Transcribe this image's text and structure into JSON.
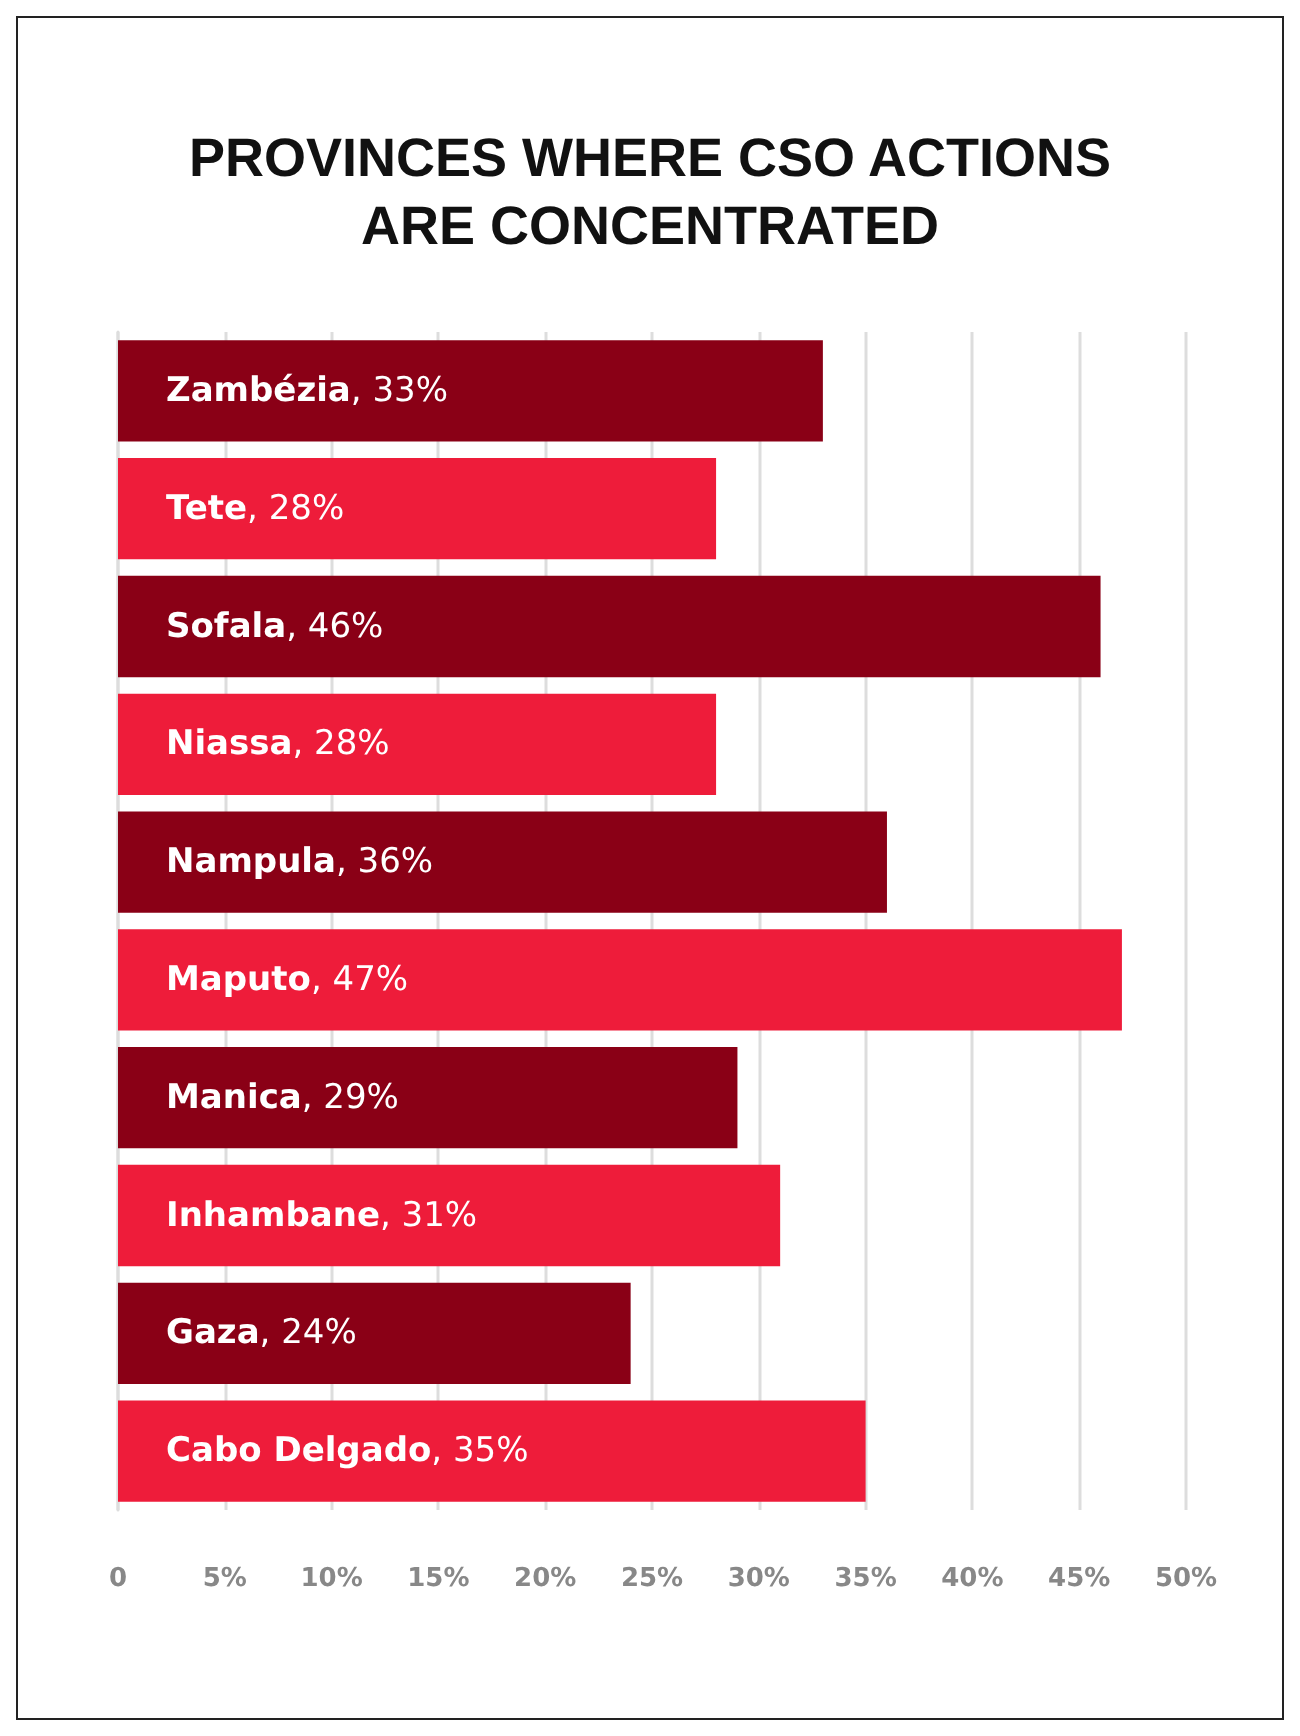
{
  "chart_data": {
    "type": "bar",
    "orientation": "horizontal",
    "title": "PROVINCES WHERE CSO ACTIONS\nARE CONCENTRATED",
    "categories": [
      "Zambézia",
      "Tete",
      "Sofala",
      "Niassa",
      "Nampula",
      "Maputo",
      "Manica",
      "Inhambane",
      "Gaza",
      "Cabo Delgado"
    ],
    "values": [
      33,
      28,
      46,
      28,
      36,
      47,
      29,
      31,
      24,
      35
    ],
    "value_labels": [
      ", 33%",
      ", 28%",
      ", 46%",
      ", 28%",
      ", 36%",
      ", 47%",
      ", 29%",
      ", 31%",
      ", 24%",
      ", 35%"
    ],
    "colors": [
      "#8a0016",
      "#ee1c3a",
      "#8a0016",
      "#ee1c3a",
      "#8a0016",
      "#ee1c3a",
      "#8a0016",
      "#ee1c3a",
      "#8a0016",
      "#ee1c3a"
    ],
    "xlim": [
      0,
      50
    ],
    "xticks": [
      0,
      {
        "value": 5,
        "label": "5%"
      },
      {
        "value": 10,
        "label": "10%"
      },
      {
        "value": 15,
        "label": "15%"
      },
      {
        "value": 20,
        "label": "20%"
      },
      {
        "value": 25,
        "label": "25%"
      },
      {
        "value": 30,
        "label": "30%"
      },
      {
        "value": 35,
        "label": "35%"
      },
      {
        "value": 40,
        "label": "40%"
      },
      {
        "value": 45,
        "label": "45%"
      },
      {
        "value": 50,
        "label": "50%"
      }
    ],
    "grid": "x",
    "tick_labels": "x"
  }
}
